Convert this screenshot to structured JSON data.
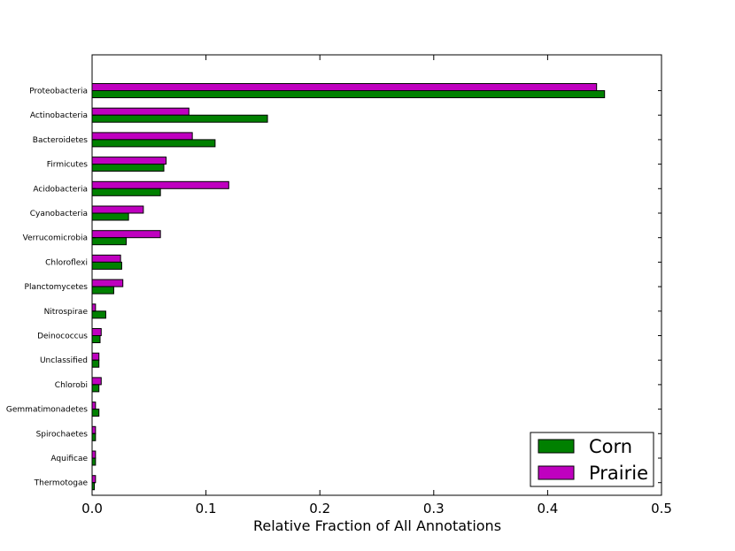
{
  "chart_data": {
    "type": "bar",
    "orientation": "horizontal",
    "categories": [
      "Proteobacteria",
      "Actinobacteria",
      "Bacteroidetes",
      "Firmicutes",
      "Acidobacteria",
      "Cyanobacteria",
      "Verrucomicrobia",
      "Chloroflexi",
      "Planctomycetes",
      "Nitrospirae",
      "Deinococcus",
      "Unclassified",
      "Chlorobi",
      "Gemmatimonadetes",
      "Spirochaetes",
      "Aquificae",
      "Thermotogae"
    ],
    "series": [
      {
        "name": "Corn",
        "color": "#008000",
        "values": [
          0.45,
          0.154,
          0.108,
          0.063,
          0.06,
          0.032,
          0.03,
          0.026,
          0.019,
          0.012,
          0.007,
          0.006,
          0.006,
          0.006,
          0.003,
          0.003,
          0.002
        ]
      },
      {
        "name": "Prairie",
        "color": "#bf00bf",
        "values": [
          0.443,
          0.085,
          0.088,
          0.065,
          0.12,
          0.045,
          0.06,
          0.025,
          0.027,
          0.003,
          0.008,
          0.006,
          0.008,
          0.003,
          0.003,
          0.003,
          0.003
        ]
      }
    ],
    "xlabel": "Relative Fraction of All Annotations",
    "xlim": [
      0,
      0.5
    ],
    "xticks": [
      "0.0",
      "0.1",
      "0.2",
      "0.3",
      "0.4",
      "0.5"
    ],
    "legend_position": "lower-right",
    "grid": false
  }
}
